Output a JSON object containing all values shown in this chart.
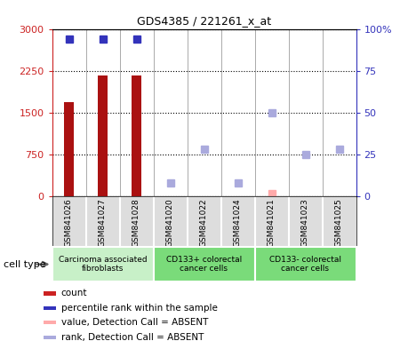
{
  "title": "GDS4385 / 221261_x_at",
  "samples": [
    "GSM841026",
    "GSM841027",
    "GSM841028",
    "GSM841020",
    "GSM841022",
    "GSM841024",
    "GSM841021",
    "GSM841023",
    "GSM841025"
  ],
  "groups": [
    {
      "label": "Carcinoma associated\nfibroblasts",
      "start": 0,
      "end": 3,
      "color": "#c8f0c8"
    },
    {
      "label": "CD133+ colorectal\ncancer cells",
      "start": 3,
      "end": 6,
      "color": "#7adb7a"
    },
    {
      "label": "CD133- colorectal\ncancer cells",
      "start": 6,
      "end": 9,
      "color": "#7adb7a"
    }
  ],
  "count_present": [
    1680,
    2170,
    2170,
    null,
    null,
    null,
    null,
    null,
    null
  ],
  "count_absent": [
    null,
    null,
    null,
    null,
    null,
    null,
    50,
    null,
    null
  ],
  "rank_present": [
    94,
    94,
    94,
    null,
    null,
    null,
    null,
    null,
    null
  ],
  "rank_absent": [
    null,
    null,
    null,
    8,
    28,
    8,
    50,
    25,
    28
  ],
  "left_ylim": [
    0,
    3000
  ],
  "right_ylim": [
    0,
    100
  ],
  "left_yticks": [
    0,
    750,
    1500,
    2250,
    3000
  ],
  "right_yticks": [
    0,
    25,
    50,
    75,
    100
  ],
  "left_yticklabels": [
    "0",
    "750",
    "1500",
    "2250",
    "3000"
  ],
  "right_yticklabels": [
    "0",
    "25",
    "50",
    "75",
    "100%"
  ],
  "bar_color": "#aa1111",
  "rank_present_color": "#3333bb",
  "count_absent_color": "#ffaaaa",
  "rank_absent_color": "#aaaadd",
  "legend_items": [
    {
      "color": "#cc2222",
      "label": "count"
    },
    {
      "color": "#3333bb",
      "label": "percentile rank within the sample"
    },
    {
      "color": "#ffaaaa",
      "label": "value, Detection Call = ABSENT"
    },
    {
      "color": "#aaaadd",
      "label": "rank, Detection Call = ABSENT"
    }
  ],
  "bar_width": 0.3
}
